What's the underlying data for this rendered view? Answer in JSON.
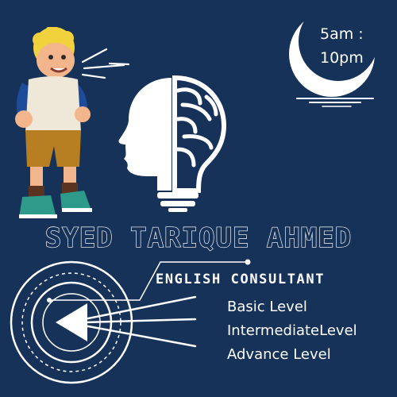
{
  "schedule": {
    "start": "5am :",
    "end": "10pm"
  },
  "consultant": {
    "name": "SYED TARIQUE AHMED",
    "role": "ENGLISH CONSULTANT"
  },
  "levels": [
    "Basic Level",
    "IntermediateLevel",
    "Advance Level"
  ],
  "icons": [
    "speaking-kid-illustration",
    "crescent-moon-icon",
    "head-brain-bulb-icon",
    "arrow-target-icon"
  ],
  "colors": {
    "background": "#163259",
    "foreground": "#ffffff"
  }
}
